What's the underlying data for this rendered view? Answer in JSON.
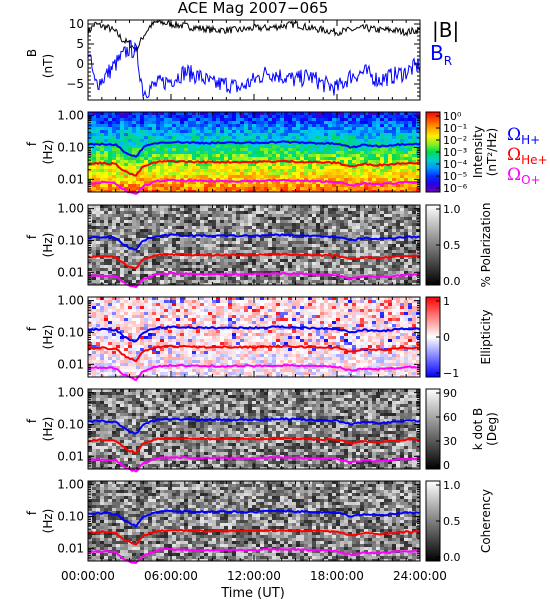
{
  "chart_data": {
    "type": "multi-panel",
    "title": "ACE Mag 2007−065",
    "xlabel": "Time (UT)",
    "x_ticks": [
      "00:00:00",
      "06:00:00",
      "12:00:00",
      "18:00:00",
      "24:00:00"
    ],
    "x_tick_hours": [
      0,
      6,
      12,
      18,
      24
    ],
    "xlim_hours": [
      0,
      24
    ],
    "panels": [
      {
        "type": "line",
        "ylabel": "B",
        "yunit": "(nT)",
        "ylim": [
          -9,
          11
        ],
        "y_ticks": [
          "10",
          "5",
          "0",
          "−5"
        ],
        "y_tick_values": [
          10,
          5,
          0,
          -5
        ],
        "legend": [
          {
            "name": "|B|",
            "color": "#000000"
          },
          {
            "name": "B",
            "sub": "R",
            "color": "#0000ff"
          }
        ],
        "series": [
          {
            "name": "|B|",
            "color": "#000000",
            "x": [
              0,
              0.5,
              1,
              1.5,
              2,
              2.5,
              3,
              3.5,
              4,
              4.5,
              5,
              6,
              7,
              8,
              9,
              10,
              11,
              12,
              13,
              14,
              15,
              16,
              17,
              18,
              19,
              20,
              21,
              22,
              23,
              24
            ],
            "y": [
              8,
              10,
              9.5,
              9,
              8,
              6,
              5,
              3.5,
              7,
              9.5,
              10.5,
              10,
              9.5,
              9,
              8.5,
              8.5,
              8.5,
              9,
              9,
              9.5,
              10,
              9,
              8.5,
              8,
              8.5,
              9,
              8.5,
              8.5,
              8,
              8.5
            ]
          },
          {
            "name": "B_R",
            "color": "#0000ff",
            "x": [
              0,
              0.5,
              1,
              1.5,
              2,
              2.5,
              3,
              3.5,
              4,
              4.5,
              5,
              6,
              7,
              8,
              9,
              10,
              11,
              12,
              13,
              14,
              15,
              16,
              17,
              18,
              19,
              20,
              21,
              22,
              23,
              24
            ],
            "y": [
              4,
              -5,
              -4,
              -2,
              0,
              2,
              4,
              3,
              -7,
              -6,
              -5,
              -4,
              -2,
              -3,
              -5,
              -5,
              -6,
              -4,
              -2,
              -3,
              -4,
              -3,
              -5,
              -6,
              -3,
              -2,
              -4,
              -3,
              -2,
              0
            ]
          }
        ]
      },
      {
        "type": "heatmap",
        "ylabel": "f",
        "yunit": "(Hz)",
        "colorbar_label": "Intensity",
        "colorbar_unit": "(nT²/Hz)",
        "colorbar_ticks": [
          "10⁰",
          "10⁻¹",
          "10⁻²",
          "10⁻³",
          "10⁻⁴",
          "10⁻⁵",
          "10⁻⁶"
        ],
        "colorscale": "rainbow"
      },
      {
        "type": "heatmap",
        "ylabel": "f",
        "yunit": "(Hz)",
        "colorbar_label": "% Polarization",
        "colorbar_ticks": [
          "1.0",
          "0.5",
          "0.0"
        ],
        "colorscale": "grayscale"
      },
      {
        "type": "heatmap",
        "ylabel": "f",
        "yunit": "(Hz)",
        "colorbar_label": "Ellipticity",
        "colorbar_ticks": [
          "1",
          "0",
          "−1"
        ],
        "colorscale": "red-white-blue"
      },
      {
        "type": "heatmap",
        "ylabel": "f",
        "yunit": "(Hz)",
        "colorbar_label": "k dot B",
        "colorbar_unit": "(Deg)",
        "colorbar_ticks": [
          "90",
          "60",
          "30",
          "0"
        ],
        "colorscale": "grayscale"
      },
      {
        "type": "heatmap",
        "ylabel": "f",
        "yunit": "(Hz)",
        "colorbar_label": "Coherency",
        "colorbar_ticks": [
          "1.0",
          "0.5",
          "0.0"
        ],
        "colorscale": "grayscale"
      }
    ],
    "freq_ylim": [
      0.004,
      1.3
    ],
    "freq_ticks": [
      "1.00",
      "0.10",
      "0.01"
    ],
    "freq_tick_values": [
      1,
      0.1,
      0.01
    ],
    "gyro_lines": [
      {
        "label": "Ω",
        "sub": "H+",
        "color": "#0000ff",
        "x": [
          0,
          1,
          2,
          2.5,
          3,
          3.5,
          4,
          5,
          6,
          8,
          10,
          12,
          14,
          16,
          18,
          19,
          20,
          21,
          22,
          23,
          24
        ],
        "f": [
          0.12,
          0.13,
          0.12,
          0.08,
          0.06,
          0.05,
          0.1,
          0.14,
          0.15,
          0.14,
          0.14,
          0.14,
          0.15,
          0.14,
          0.13,
          0.1,
          0.12,
          0.11,
          0.12,
          0.13,
          0.13
        ]
      },
      {
        "label": "Ω",
        "sub": "He+",
        "color": "#ff0000",
        "x": [
          0,
          1,
          2,
          2.5,
          3,
          3.5,
          4,
          5,
          6,
          8,
          10,
          12,
          14,
          16,
          18,
          19,
          20,
          21,
          22,
          23,
          24
        ],
        "f": [
          0.03,
          0.033,
          0.03,
          0.02,
          0.015,
          0.013,
          0.025,
          0.035,
          0.037,
          0.035,
          0.035,
          0.035,
          0.037,
          0.035,
          0.033,
          0.025,
          0.03,
          0.028,
          0.03,
          0.033,
          0.033
        ]
      },
      {
        "label": "Ω",
        "sub": "O+",
        "color": "#ff00ff",
        "x": [
          0,
          1,
          2,
          2.5,
          3,
          3.5,
          4,
          5,
          6,
          8,
          10,
          12,
          14,
          16,
          18,
          19,
          20,
          21,
          22,
          23,
          24
        ],
        "f": [
          0.0075,
          0.008,
          0.0075,
          0.005,
          0.0038,
          0.0033,
          0.006,
          0.0088,
          0.0093,
          0.0088,
          0.0088,
          0.0088,
          0.0093,
          0.0088,
          0.0083,
          0.0063,
          0.0075,
          0.007,
          0.0075,
          0.0083,
          0.0083
        ]
      }
    ]
  }
}
